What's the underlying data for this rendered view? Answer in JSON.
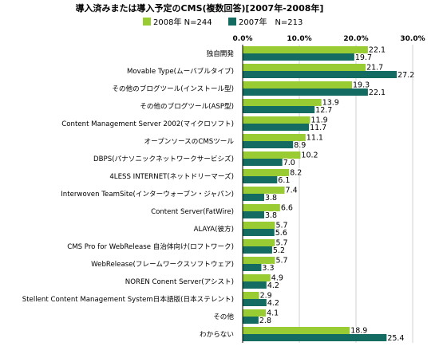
{
  "chart_data": {
    "type": "bar",
    "orientation": "horizontal",
    "title": "導入済みまたは導入予定のCMS(複数回答)[2007年-2008年]",
    "xlim": [
      0,
      30
    ],
    "xticks": [
      "0.0%",
      "10.0%",
      "20.0%",
      "30.0%"
    ],
    "grid": true,
    "legend": "top",
    "categories": [
      "独自開発",
      "Movable Type(ムーバブルタイプ)",
      "その他のブログツール(インストール型)",
      "その他のブログツール(ASP型)",
      "Content Management Server 2002(マイクロソフト)",
      "オープンソースのCMSツール",
      "DBPS(パナソニックネットワークサービシズ)",
      "4LESS INTERNET(ネットドリーマーズ)",
      "Interwoven TeamSite(インターウォーブン・ジャパン)",
      "Content Server(FatWire)",
      "ALAYA(彼方)",
      "CMS Pro for WebRelease 自治体向け(ロフトワーク)",
      "WebRelease(フレームワークスソフトウェア)",
      "NOREN Conent Server(アシスト)",
      "Stellent Content Management System日本語版(日本ステレント)",
      "その他",
      "わからない"
    ],
    "series": [
      {
        "name": "2008年 N=244",
        "color": "#99cc33",
        "values": [
          22.1,
          21.7,
          19.3,
          13.9,
          11.9,
          11.1,
          10.2,
          8.2,
          7.4,
          6.6,
          5.7,
          5.7,
          5.7,
          4.9,
          2.9,
          4.1,
          18.9
        ],
        "labels": [
          "22.1",
          "21.7",
          "19.3",
          "13.9",
          "11.9",
          "11.1",
          "10.2",
          "8.2",
          "7.4",
          "6.6",
          "5.7",
          "5.7",
          "5.7",
          "4.9",
          "2.9",
          "4.1",
          "18.9"
        ]
      },
      {
        "name": "2007年　N=213",
        "color": "#136b62",
        "values": [
          19.7,
          27.2,
          22.1,
          12.7,
          11.7,
          8.9,
          7.0,
          6.1,
          3.8,
          3.8,
          5.6,
          5.2,
          3.3,
          4.2,
          4.2,
          2.8,
          25.4
        ],
        "labels": [
          "19.7",
          "27.2",
          "22.1",
          "12.7",
          "11.7",
          "8.9",
          "7.0",
          "6.1",
          "3.8",
          "3.8",
          "5.6",
          "5.2",
          "3.3",
          "4.2",
          "4.2",
          "2.8",
          "25.4"
        ]
      }
    ]
  }
}
